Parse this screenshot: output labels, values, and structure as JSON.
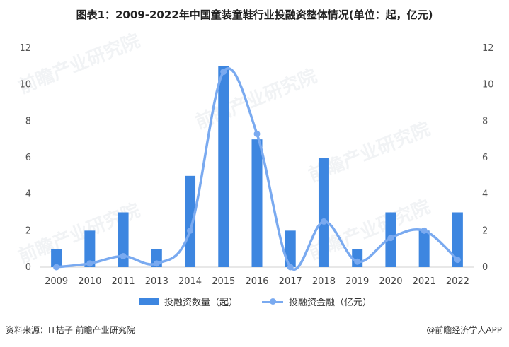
{
  "title": "图表1：2009-2022年中国童装童鞋行业投融资整体情况(单位：起，亿元)",
  "watermark": "前瞻产业研究院",
  "source": "资料来源：IT桔子 前瞻产业研究院",
  "credit": "@前瞻经济学人APP",
  "colors": {
    "bar": "#3d86e0",
    "line": "#7aaaf0"
  },
  "chart_data": {
    "type": "bar+line",
    "categories": [
      "2009",
      "2010",
      "2011",
      "2013",
      "2014",
      "2015",
      "2016",
      "2017",
      "2018",
      "2019",
      "2020",
      "2021",
      "2022"
    ],
    "series": [
      {
        "name": "投融资数量（起）",
        "type": "bar",
        "axis": "left",
        "values": [
          1,
          2,
          3,
          1,
          5,
          11,
          7,
          2,
          6,
          1,
          3,
          2,
          3
        ]
      },
      {
        "name": "投融资金融（亿元）",
        "type": "line",
        "smooth": true,
        "axis": "right",
        "values": [
          0,
          0.2,
          0.6,
          0.2,
          2.0,
          10.7,
          7.3,
          0,
          2.5,
          0.3,
          1.6,
          2.0,
          0.4
        ]
      }
    ],
    "y_left": {
      "min": 0,
      "max": 12,
      "ticks": [
        0,
        2,
        4,
        6,
        8,
        10,
        12
      ]
    },
    "y_right": {
      "min": 0,
      "max": 12,
      "ticks": [
        0,
        2,
        4,
        6,
        8,
        10,
        12
      ]
    },
    "legend": "bottom",
    "grid": false
  }
}
